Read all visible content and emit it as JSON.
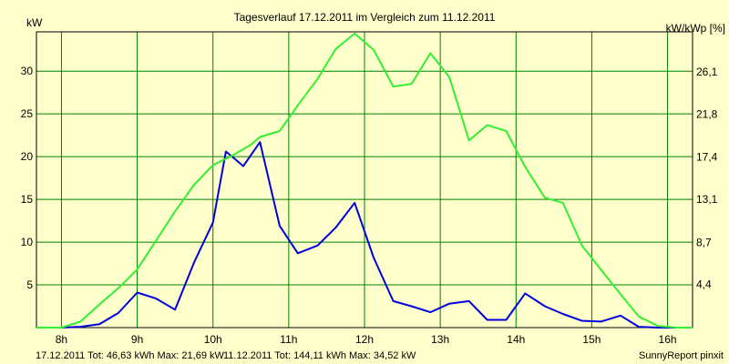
{
  "chart_data": {
    "type": "line",
    "title": "Tagesverlauf 17.12.2011 im Vergleich zum 11.12.2011",
    "ylabel_left": "kW",
    "ylabel_right": "kW/kWp [%]",
    "x_ticks": [
      "8h",
      "9h",
      "10h",
      "11h",
      "12h",
      "13h",
      "14h",
      "15h",
      "16h"
    ],
    "xlim": [
      7.67,
      16.33
    ],
    "ylim_left": [
      0,
      34.6
    ],
    "y_ticks_left": [
      5,
      10,
      15,
      20,
      25,
      30
    ],
    "ylim_right": [
      0,
      30.2
    ],
    "y_ticks_right": [
      "4,4",
      "8,7",
      "13,1",
      "17,4",
      "21,8",
      "26,1"
    ],
    "grid": true,
    "series": [
      {
        "name": "17.12.2011",
        "color": "#0000dd",
        "x": [
          7.67,
          8.0,
          8.25,
          8.5,
          8.75,
          9.0,
          9.25,
          9.5,
          9.75,
          10.0,
          10.17,
          10.4,
          10.62,
          10.88,
          11.12,
          11.38,
          11.62,
          11.87,
          12.12,
          12.38,
          12.62,
          12.87,
          13.12,
          13.38,
          13.62,
          13.87,
          14.12,
          14.38,
          14.62,
          14.87,
          15.12,
          15.38,
          15.62,
          15.87,
          16.12,
          16.33
        ],
        "y": [
          0,
          0,
          0.1,
          0.4,
          1.7,
          4.1,
          3.4,
          2.1,
          7.6,
          12.3,
          20.6,
          18.9,
          21.7,
          11.9,
          8.7,
          9.6,
          11.7,
          14.6,
          8.2,
          3.1,
          2.5,
          1.8,
          2.8,
          3.1,
          0.9,
          0.9,
          4.0,
          2.5,
          1.6,
          0.8,
          0.7,
          1.4,
          0.1,
          0,
          0,
          0
        ]
      },
      {
        "name": "11.12.2011",
        "color": "#33ee33",
        "x": [
          7.67,
          8.0,
          8.25,
          8.5,
          8.75,
          9.0,
          9.25,
          9.5,
          9.75,
          10.0,
          10.25,
          10.5,
          10.62,
          10.88,
          11.12,
          11.38,
          11.62,
          11.87,
          12.12,
          12.38,
          12.62,
          12.87,
          13.12,
          13.38,
          13.62,
          13.87,
          14.12,
          14.38,
          14.62,
          14.87,
          15.12,
          15.38,
          15.62,
          15.87,
          16.12,
          16.33
        ],
        "y": [
          0,
          0,
          0.7,
          2.7,
          4.6,
          6.8,
          10.2,
          13.6,
          16.7,
          19.0,
          20.1,
          21.4,
          22.3,
          23.0,
          26.0,
          29.1,
          32.6,
          34.4,
          32.5,
          28.2,
          28.5,
          32.1,
          29.3,
          21.9,
          23.7,
          23.0,
          18.8,
          15.2,
          14.6,
          9.6,
          6.8,
          3.9,
          1.3,
          0.2,
          0,
          0
        ]
      }
    ],
    "footer": {
      "left_text": "17.12.2011 Tot: 46,63 kWh Max: 21,69 kW",
      "middle_text": "11.12.2011 Tot: 144,11 kWh Max: 34,52 kW",
      "right_text": "SunnyReport pinxit"
    }
  }
}
